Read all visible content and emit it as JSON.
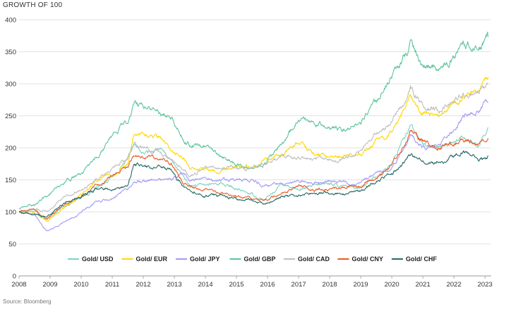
{
  "title": "GROWTH OF 100",
  "source": "Source: Bloomberg",
  "chart_data": {
    "type": "line",
    "title": "GROWTH OF 100",
    "xlabel": "",
    "ylabel": "",
    "xlim": [
      2008,
      2023.2
    ],
    "ylim": [
      0,
      400
    ],
    "yticks": [
      0,
      50,
      100,
      150,
      200,
      250,
      300,
      350,
      400
    ],
    "xticks": [
      "2008",
      "2009",
      "2010",
      "2011",
      "2012",
      "2013",
      "2014",
      "2015",
      "2016",
      "2017",
      "2018",
      "2019",
      "2020",
      "2021",
      "2022",
      "2023"
    ],
    "grid": "horizontal",
    "legend_position": "bottom",
    "x": [
      2008.0,
      2008.5,
      2008.9,
      2009.5,
      2010.0,
      2010.5,
      2011.0,
      2011.5,
      2011.7,
      2012.0,
      2012.5,
      2012.9,
      2013.3,
      2013.5,
      2014.0,
      2014.5,
      2015.0,
      2015.5,
      2015.9,
      2016.5,
      2017.0,
      2017.5,
      2018.0,
      2018.5,
      2019.0,
      2019.5,
      2020.0,
      2020.5,
      2020.6,
      2021.0,
      2021.5,
      2022.0,
      2022.3,
      2022.8,
      2023.1
    ],
    "series": [
      {
        "name": "Gold/ USD",
        "color": "#7fd1c0",
        "values": [
          100,
          102,
          88,
          110,
          122,
          138,
          155,
          180,
          205,
          190,
          200,
          180,
          155,
          140,
          142,
          145,
          135,
          128,
          118,
          145,
          135,
          140,
          145,
          138,
          140,
          155,
          175,
          225,
          240,
          205,
          200,
          210,
          220,
          200,
          232
        ]
      },
      {
        "name": "Gold/ EUR",
        "color": "#ffd800",
        "values": [
          102,
          100,
          86,
          108,
          128,
          148,
          158,
          175,
          225,
          220,
          215,
          195,
          185,
          165,
          168,
          165,
          170,
          170,
          180,
          190,
          210,
          190,
          185,
          188,
          190,
          210,
          225,
          270,
          282,
          255,
          250,
          270,
          280,
          290,
          311
        ]
      },
      {
        "name": "Gold/ JPY",
        "color": "#a29bf4",
        "values": [
          100,
          95,
          70,
          85,
          100,
          115,
          120,
          135,
          148,
          150,
          150,
          150,
          160,
          150,
          150,
          150,
          148,
          150,
          140,
          145,
          148,
          145,
          147,
          145,
          145,
          158,
          168,
          210,
          222,
          200,
          205,
          230,
          250,
          260,
          270
        ]
      },
      {
        "name": "Gold/ GBP",
        "color": "#5ec49a",
        "values": [
          105,
          112,
          125,
          148,
          160,
          182,
          220,
          240,
          270,
          265,
          255,
          250,
          215,
          205,
          200,
          188,
          175,
          168,
          175,
          210,
          245,
          240,
          232,
          228,
          240,
          275,
          310,
          350,
          365,
          330,
          325,
          340,
          365,
          350,
          373
        ]
      },
      {
        "name": "Gold/ CAD",
        "color": "#bfbfbf",
        "values": [
          100,
          105,
          100,
          125,
          135,
          150,
          170,
          185,
          210,
          200,
          195,
          180,
          165,
          155,
          170,
          170,
          170,
          168,
          175,
          188,
          185,
          182,
          180,
          182,
          195,
          220,
          240,
          278,
          292,
          265,
          260,
          270,
          285,
          285,
          300
        ]
      },
      {
        "name": "Gold/ CNY",
        "color": "#ea5a22",
        "values": [
          100,
          104,
          88,
          112,
          125,
          140,
          155,
          170,
          190,
          185,
          185,
          175,
          145,
          140,
          135,
          130,
          125,
          122,
          118,
          130,
          140,
          135,
          135,
          138,
          140,
          155,
          170,
          215,
          228,
          210,
          200,
          205,
          215,
          205,
          215
        ]
      },
      {
        "name": "Gold/ CHF",
        "color": "#236b64",
        "values": [
          100,
          96,
          92,
          115,
          125,
          135,
          135,
          140,
          175,
          170,
          170,
          165,
          140,
          132,
          125,
          125,
          120,
          118,
          112,
          125,
          125,
          128,
          130,
          128,
          132,
          148,
          158,
          182,
          190,
          178,
          175,
          185,
          195,
          180,
          188
        ]
      }
    ]
  }
}
